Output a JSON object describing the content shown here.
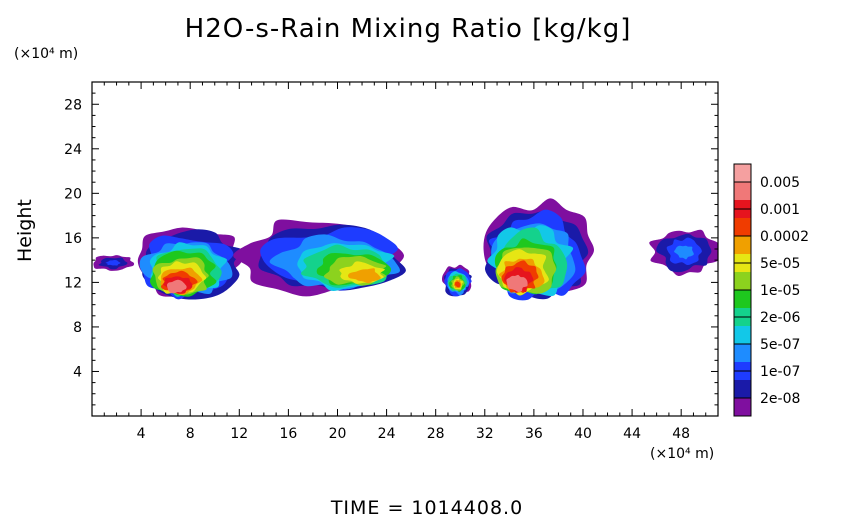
{
  "title": "H2O-s-Rain Mixing Ratio [kg/kg]",
  "footer": "TIME = 1014408.0",
  "chart_data": {
    "type": "heatmap",
    "title": "H2O-s-Rain Mixing Ratio [kg/kg]",
    "xlabel": "",
    "x_unit": "(×10⁴ m)",
    "ylabel": "Height",
    "y_unit": "(×10⁴ m)",
    "xlim": [
      0,
      51
    ],
    "ylim": [
      0,
      30
    ],
    "x_ticks": [
      4,
      8,
      12,
      16,
      20,
      24,
      28,
      32,
      36,
      40,
      44,
      48
    ],
    "y_ticks": [
      4,
      8,
      12,
      16,
      20,
      24,
      28
    ],
    "grid": false,
    "legend": "right",
    "colorbar": {
      "labels": [
        "0.005",
        "0.001",
        "0.0002",
        "5e-05",
        "1e-05",
        "2e-06",
        "5e-07",
        "1e-07",
        "2e-08"
      ],
      "colors": [
        "#7f0f9f",
        "#1a1aa8",
        "#1e3cff",
        "#1e8cff",
        "#12c8e8",
        "#14d28c",
        "#1ec81e",
        "#8cd21e",
        "#e6e614",
        "#f0a000",
        "#f03c00",
        "#e6141e",
        "#f07878",
        "#f5a0a0"
      ]
    },
    "regions": [
      {
        "name": "west edge",
        "x": [
          0,
          3.5
        ],
        "y": [
          13,
          14.5
        ],
        "level": 2
      },
      {
        "name": "cell A",
        "x": [
          3.5,
          12.5
        ],
        "y": [
          10.7,
          17.2
        ],
        "level": 8,
        "core": [
          6.8,
          11.5
        ],
        "core_level": 12
      },
      {
        "name": "cell B",
        "x": [
          12,
          25.5
        ],
        "y": [
          11,
          17.8
        ],
        "level": 8,
        "core": [
          22.5,
          12.5
        ],
        "core_level": 9
      },
      {
        "name": "cell C",
        "x": [
          28.5,
          31
        ],
        "y": [
          10.7,
          13.5
        ],
        "level": 8,
        "core": [
          29.8,
          11.8
        ],
        "core_level": 10
      },
      {
        "name": "cell D",
        "x": [
          32,
          41
        ],
        "y": [
          10.5,
          19.3
        ],
        "level": 8,
        "core": [
          34.5,
          11.8
        ],
        "core_level": 12
      },
      {
        "name": "east fragments",
        "x": [
          45.5,
          51
        ],
        "y": [
          12.5,
          17
        ],
        "level": 3
      }
    ]
  }
}
